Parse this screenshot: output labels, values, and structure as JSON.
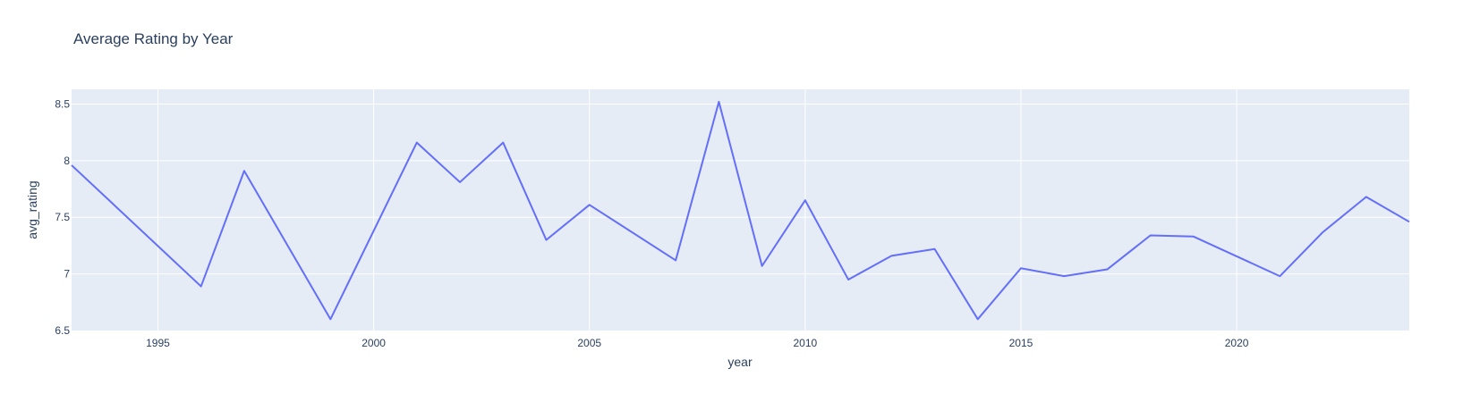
{
  "chart_data": {
    "type": "line",
    "title": "Average Rating by Year",
    "xlabel": "year",
    "ylabel": "avg_rating",
    "xlim": [
      1993,
      2024
    ],
    "ylim": [
      6.5,
      8.63
    ],
    "x_ticks": [
      1995,
      2000,
      2005,
      2010,
      2015,
      2020
    ],
    "y_ticks": [
      6.5,
      7,
      7.5,
      8,
      8.5
    ],
    "y_tick_labels": [
      "6.5",
      "7",
      "7.5",
      "8",
      "8.5"
    ],
    "grid": true,
    "colors": {
      "line": "#636efa",
      "plot_bg": "#e5ecf6",
      "grid": "#ffffff",
      "text": "#2a3f5f"
    },
    "series": [
      {
        "x": [
          1993,
          1996,
          1997,
          1999,
          2001,
          2002,
          2003,
          2004,
          2005,
          2007,
          2008,
          2009,
          2010,
          2011,
          2012,
          2013,
          2014,
          2015,
          2016,
          2017,
          2018,
          2019,
          2021,
          2022,
          2023,
          2024
        ],
        "y": [
          7.96,
          6.89,
          7.91,
          6.6,
          8.16,
          7.81,
          8.16,
          7.3,
          7.61,
          7.12,
          8.52,
          7.07,
          7.65,
          6.95,
          7.16,
          7.22,
          6.6,
          7.05,
          6.98,
          7.04,
          7.34,
          7.33,
          6.98,
          7.37,
          7.68,
          7.46
        ]
      }
    ]
  }
}
